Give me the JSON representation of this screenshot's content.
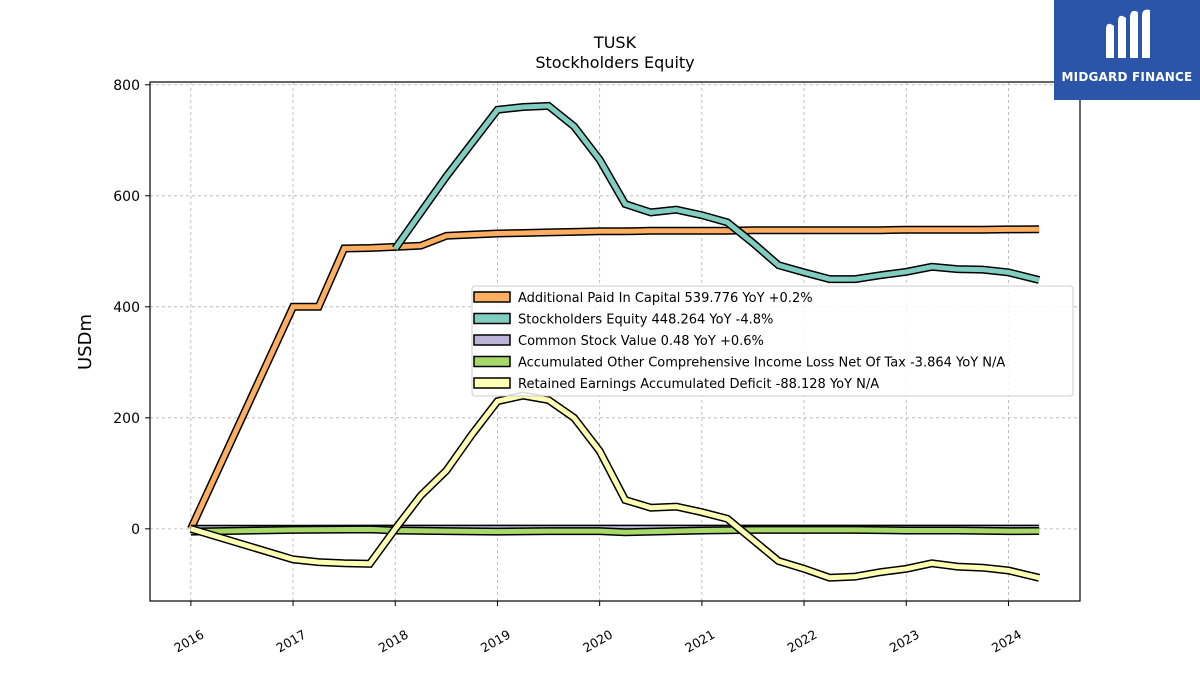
{
  "chart_data": {
    "type": "line",
    "title": "TUSK",
    "subtitle": "Stockholders  Equity",
    "ylabel": "USDm",
    "xlabel": "",
    "xlim": [
      2015.6,
      2024.7
    ],
    "ylim": [
      -130,
      805
    ],
    "yticks": [
      0,
      200,
      400,
      600,
      800
    ],
    "xticks": [
      2016,
      2017,
      2018,
      2019,
      2020,
      2021,
      2022,
      2023,
      2024
    ],
    "grid": true,
    "legend_position": "center-right",
    "series": [
      {
        "name": "Additional Paid In Capital  539.776 YoY +0.2%",
        "color": "#fdae61",
        "x": [
          2016.0,
          2017.0,
          2017.25,
          2017.5,
          2017.75,
          2018.0,
          2018.25,
          2018.5,
          2018.75,
          2019.0,
          2019.25,
          2019.5,
          2019.75,
          2020.0,
          2020.25,
          2020.5,
          2020.75,
          2021.0,
          2021.25,
          2021.5,
          2021.75,
          2022.0,
          2022.25,
          2022.5,
          2022.75,
          2023.0,
          2023.25,
          2023.5,
          2023.75,
          2024.0,
          2024.3
        ],
        "y": [
          0,
          400,
          400,
          505,
          506,
          508,
          510,
          528,
          530,
          532,
          533,
          534,
          535,
          536,
          536,
          537,
          537,
          537,
          537,
          538,
          538,
          538,
          538,
          538,
          538,
          539,
          539,
          539,
          539,
          539.5,
          539.776
        ]
      },
      {
        "name": "Stockholders Equity  448.264 YoY -4.8%",
        "color": "#80cdc1",
        "x": [
          2018.0,
          2018.25,
          2018.5,
          2018.75,
          2019.0,
          2019.25,
          2019.5,
          2019.75,
          2020.0,
          2020.25,
          2020.5,
          2020.75,
          2021.0,
          2021.25,
          2021.5,
          2021.75,
          2022.0,
          2022.25,
          2022.5,
          2022.75,
          2023.0,
          2023.25,
          2023.5,
          2023.75,
          2024.0,
          2024.3
        ],
        "y": [
          505,
          570,
          635,
          695,
          755,
          760,
          762,
          725,
          665,
          585,
          570,
          575,
          565,
          552,
          515,
          475,
          462,
          450,
          450,
          457,
          463,
          472,
          468,
          467,
          462,
          448.264
        ]
      },
      {
        "name": "Common Stock Value  0.48 YoY +0.6%",
        "color": "#bcb4d8",
        "x": [
          2016.0,
          2017.0,
          2018.0,
          2019.0,
          2020.0,
          2021.0,
          2022.0,
          2023.0,
          2024.0,
          2024.3
        ],
        "y": [
          0.0,
          0.3,
          0.35,
          0.4,
          0.42,
          0.44,
          0.46,
          0.47,
          0.47,
          0.48
        ]
      },
      {
        "name": "Accumulated Other Comprehensive Income Loss Net Of Tax  -3.864 YoY N/A",
        "color": "#a6d96a",
        "x": [
          2016.0,
          2017.0,
          2017.75,
          2018.0,
          2018.5,
          2019.0,
          2019.5,
          2020.0,
          2020.25,
          2021.0,
          2021.5,
          2022.0,
          2022.5,
          2023.0,
          2023.5,
          2024.0,
          2024.3
        ],
        "y": [
          -5,
          -2,
          -1,
          -3,
          -4,
          -5,
          -4,
          -4,
          -6,
          -3,
          -2,
          -2,
          -2,
          -3,
          -3,
          -4,
          -3.864
        ]
      },
      {
        "name": "Retained Earnings Accumulated Deficit  -88.128 YoY N/A",
        "color": "#ffffb3",
        "x": [
          2016.0,
          2017.0,
          2017.25,
          2017.5,
          2017.75,
          2018.0,
          2018.25,
          2018.5,
          2018.75,
          2019.0,
          2019.25,
          2019.5,
          2019.75,
          2020.0,
          2020.25,
          2020.5,
          2020.75,
          2021.0,
          2021.25,
          2021.5,
          2021.75,
          2022.0,
          2022.25,
          2022.5,
          2022.75,
          2023.0,
          2023.25,
          2023.5,
          2023.75,
          2024.0,
          2024.3
        ],
        "y": [
          0,
          -55,
          -60,
          -62,
          -63,
          0,
          60,
          105,
          170,
          230,
          240,
          232,
          200,
          140,
          52,
          38,
          40,
          30,
          18,
          -20,
          -58,
          -72,
          -88,
          -86,
          -78,
          -72,
          -62,
          -68,
          -70,
          -75,
          -88.128
        ]
      }
    ]
  },
  "logo": {
    "text": "MIDGARD FINANCE"
  }
}
